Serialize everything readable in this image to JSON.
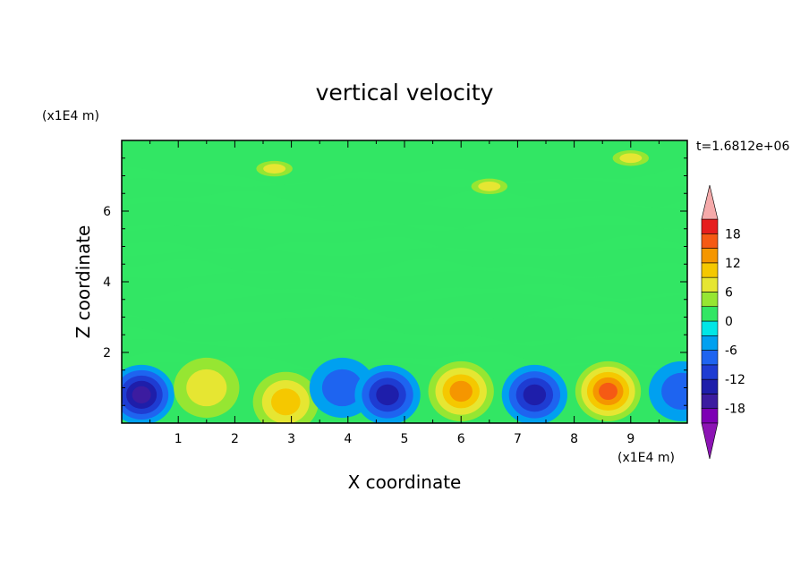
{
  "chart_data": {
    "type": "heatmap",
    "title": "vertical velocity",
    "xlabel": "X coordinate",
    "ylabel": "Z coordinate",
    "x_unit": "(x1E4 m)",
    "y_unit": "(x1E4 m)",
    "time_label": "t=1.6812e+06",
    "xlim": [
      0,
      10
    ],
    "ylim": [
      0,
      8
    ],
    "x_ticks": [
      "1",
      "2",
      "3",
      "4",
      "5",
      "6",
      "7",
      "8",
      "9"
    ],
    "y_ticks": [
      "2",
      "4",
      "6"
    ],
    "colorbar": {
      "ticks": [
        "18",
        "12",
        "6",
        "0",
        "-6",
        "-12",
        "-18"
      ],
      "range": [
        -21,
        21
      ],
      "levels": [
        -21,
        -18,
        -15,
        -12,
        -9,
        -6,
        -3,
        0,
        3,
        6,
        9,
        12,
        15,
        18,
        21
      ],
      "colors": [
        "#7d00b4",
        "#3c1ca0",
        "#1e1eaa",
        "#1e3cd2",
        "#1e64f0",
        "#00a0f0",
        "#00e6e6",
        "#32e664",
        "#96e632",
        "#e6e632",
        "#f5c800",
        "#f59600",
        "#f55a14",
        "#e61e1e"
      ],
      "extend_low_color": "#8c14b4",
      "extend_high_color": "#f5aaaa"
    },
    "features": [
      {
        "x": 0.35,
        "z": 0.8,
        "w": -15
      },
      {
        "x": 1.5,
        "z": 1.0,
        "w": 6
      },
      {
        "x": 2.9,
        "z": 0.6,
        "w": 9
      },
      {
        "x": 3.9,
        "z": 1.0,
        "w": -6
      },
      {
        "x": 4.7,
        "z": 0.8,
        "w": -12
      },
      {
        "x": 6.0,
        "z": 0.9,
        "w": 12
      },
      {
        "x": 7.3,
        "z": 0.8,
        "w": -12
      },
      {
        "x": 8.6,
        "z": 0.9,
        "w": 15
      },
      {
        "x": 9.9,
        "z": 0.9,
        "w": -6
      },
      {
        "x": 2.7,
        "z": 7.2,
        "w": 6
      },
      {
        "x": 6.5,
        "z": 6.7,
        "w": 6
      },
      {
        "x": 9.0,
        "z": 7.5,
        "w": 6
      }
    ]
  }
}
